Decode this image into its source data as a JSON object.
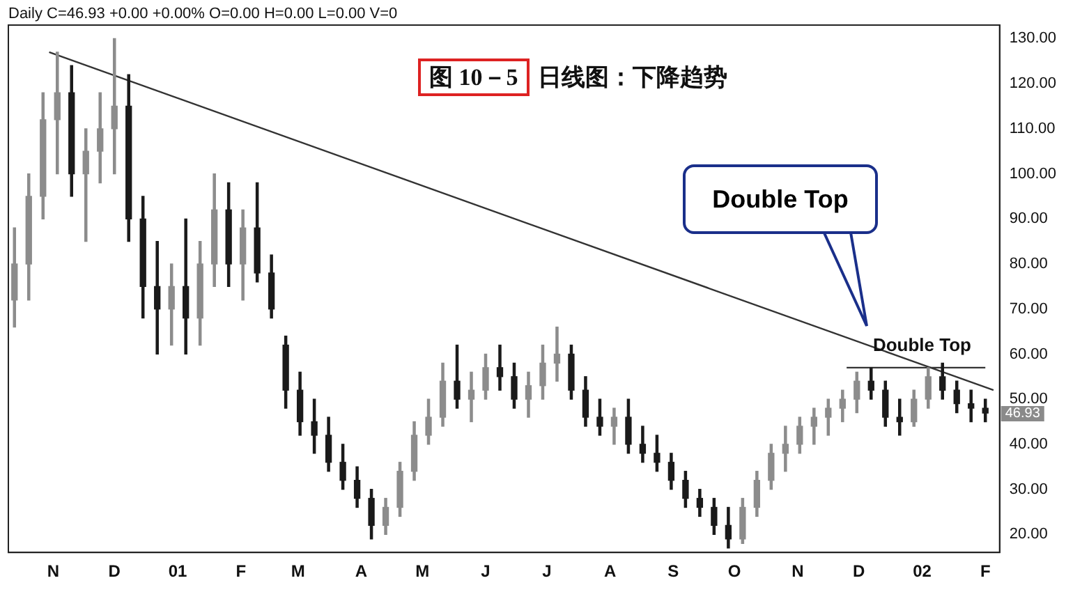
{
  "chart_data": {
    "type": "candlestick",
    "title": "图 10－5 日线图：下降趋势",
    "annotations": [
      "Daily C=46.93 +0.00 +0.00% O=0.00 H=0.00 L=0.00 V=0",
      "Double Top",
      {
        "text": "Double Top",
        "x": "2002-01-01",
        "y": 57
      },
      "46.93"
    ],
    "x": [
      "2000-10-13",
      "2000-10-20",
      "2000-10-27",
      "2000-11-03",
      "2000-11-10",
      "2000-11-17",
      "2000-11-24",
      "2000-12-01",
      "2000-12-08",
      "2000-12-15",
      "2000-12-22",
      "2000-12-29",
      "2001-01-05",
      "2001-01-12",
      "2001-01-19",
      "2001-01-26",
      "2001-02-02",
      "2001-02-09",
      "2001-02-16",
      "2001-02-23",
      "2001-03-02",
      "2001-03-09",
      "2001-03-16",
      "2001-03-23",
      "2001-03-30",
      "2001-04-06",
      "2001-04-13",
      "2001-04-20",
      "2001-04-27",
      "2001-05-04",
      "2001-05-11",
      "2001-05-18",
      "2001-05-25",
      "2001-06-01",
      "2001-06-08",
      "2001-06-15",
      "2001-06-22",
      "2001-06-29",
      "2001-07-06",
      "2001-07-13",
      "2001-07-20",
      "2001-07-27",
      "2001-08-03",
      "2001-08-10",
      "2001-08-17",
      "2001-08-24",
      "2001-08-31",
      "2001-09-07",
      "2001-09-14",
      "2001-09-21",
      "2001-09-28",
      "2001-10-05",
      "2001-10-12",
      "2001-10-19",
      "2001-10-26",
      "2001-11-02",
      "2001-11-09",
      "2001-11-16",
      "2001-11-23",
      "2001-11-30",
      "2001-12-07",
      "2001-12-14",
      "2001-12-21",
      "2001-12-28",
      "2002-01-04",
      "2002-01-11",
      "2002-01-18",
      "2002-01-25",
      "2002-02-01"
    ],
    "ohlc": [
      [
        72,
        88,
        66,
        80
      ],
      [
        80,
        100,
        72,
        95
      ],
      [
        95,
        118,
        90,
        112
      ],
      [
        112,
        127,
        100,
        118
      ],
      [
        118,
        124,
        95,
        100
      ],
      [
        100,
        110,
        85,
        105
      ],
      [
        105,
        118,
        98,
        110
      ],
      [
        110,
        130,
        100,
        115
      ],
      [
        115,
        122,
        85,
        90
      ],
      [
        90,
        95,
        68,
        75
      ],
      [
        75,
        85,
        60,
        70
      ],
      [
        70,
        80,
        62,
        75
      ],
      [
        75,
        90,
        60,
        68
      ],
      [
        68,
        85,
        62,
        80
      ],
      [
        80,
        100,
        75,
        92
      ],
      [
        92,
        98,
        75,
        80
      ],
      [
        80,
        92,
        72,
        88
      ],
      [
        88,
        98,
        76,
        78
      ],
      [
        78,
        82,
        68,
        70
      ],
      [
        62,
        64,
        48,
        52
      ],
      [
        52,
        56,
        42,
        45
      ],
      [
        45,
        50,
        38,
        42
      ],
      [
        42,
        46,
        34,
        36
      ],
      [
        36,
        40,
        30,
        32
      ],
      [
        32,
        35,
        26,
        28
      ],
      [
        28,
        30,
        19,
        22
      ],
      [
        22,
        28,
        20,
        26
      ],
      [
        26,
        36,
        24,
        34
      ],
      [
        34,
        45,
        32,
        42
      ],
      [
        42,
        50,
        40,
        46
      ],
      [
        46,
        58,
        44,
        54
      ],
      [
        54,
        62,
        48,
        50
      ],
      [
        50,
        56,
        45,
        52
      ],
      [
        52,
        60,
        50,
        57
      ],
      [
        57,
        62,
        52,
        55
      ],
      [
        55,
        58,
        48,
        50
      ],
      [
        50,
        56,
        46,
        53
      ],
      [
        53,
        62,
        50,
        58
      ],
      [
        58,
        66,
        54,
        60
      ],
      [
        60,
        62,
        50,
        52
      ],
      [
        52,
        55,
        44,
        46
      ],
      [
        46,
        50,
        42,
        44
      ],
      [
        44,
        48,
        40,
        46
      ],
      [
        46,
        50,
        38,
        40
      ],
      [
        40,
        44,
        36,
        38
      ],
      [
        38,
        42,
        34,
        36
      ],
      [
        36,
        38,
        30,
        32
      ],
      [
        32,
        34,
        26,
        28
      ],
      [
        28,
        30,
        24,
        26
      ],
      [
        26,
        28,
        20,
        22
      ],
      [
        22,
        26,
        17,
        19
      ],
      [
        19,
        28,
        18,
        26
      ],
      [
        26,
        34,
        24,
        32
      ],
      [
        32,
        40,
        30,
        38
      ],
      [
        38,
        44,
        34,
        40
      ],
      [
        40,
        46,
        38,
        44
      ],
      [
        44,
        48,
        40,
        46
      ],
      [
        46,
        50,
        42,
        48
      ],
      [
        48,
        52,
        45,
        50
      ],
      [
        50,
        56,
        47,
        54
      ],
      [
        54,
        57,
        50,
        52
      ],
      [
        52,
        54,
        44,
        46
      ],
      [
        46,
        50,
        42,
        45
      ],
      [
        45,
        52,
        44,
        50
      ],
      [
        50,
        57,
        48,
        55
      ],
      [
        55,
        58,
        50,
        52
      ],
      [
        52,
        54,
        47,
        49
      ],
      [
        49,
        52,
        45,
        48
      ],
      [
        48,
        50,
        45,
        46.93
      ]
    ],
    "colors": [
      "#8c8c8c",
      "#8c8c8c",
      "#8c8c8c",
      "#8c8c8c",
      "#1a1a1a",
      "#8c8c8c",
      "#8c8c8c",
      "#8c8c8c",
      "#1a1a1a",
      "#1a1a1a",
      "#1a1a1a",
      "#8c8c8c",
      "#1a1a1a",
      "#8c8c8c",
      "#8c8c8c",
      "#1a1a1a",
      "#8c8c8c",
      "#1a1a1a",
      "#1a1a1a",
      "#1a1a1a",
      "#1a1a1a",
      "#1a1a1a",
      "#1a1a1a",
      "#1a1a1a",
      "#1a1a1a",
      "#1a1a1a",
      "#8c8c8c",
      "#8c8c8c",
      "#8c8c8c",
      "#8c8c8c",
      "#8c8c8c",
      "#1a1a1a",
      "#8c8c8c",
      "#8c8c8c",
      "#1a1a1a",
      "#1a1a1a",
      "#8c8c8c",
      "#8c8c8c",
      "#8c8c8c",
      "#1a1a1a",
      "#1a1a1a",
      "#1a1a1a",
      "#8c8c8c",
      "#1a1a1a",
      "#1a1a1a",
      "#1a1a1a",
      "#1a1a1a",
      "#1a1a1a",
      "#1a1a1a",
      "#1a1a1a",
      "#1a1a1a",
      "#8c8c8c",
      "#8c8c8c",
      "#8c8c8c",
      "#8c8c8c",
      "#8c8c8c",
      "#8c8c8c",
      "#8c8c8c",
      "#8c8c8c",
      "#8c8c8c",
      "#1a1a1a",
      "#1a1a1a",
      "#1a1a1a",
      "#8c8c8c",
      "#8c8c8c",
      "#1a1a1a",
      "#1a1a1a",
      "#1a1a1a",
      "#1a1a1a"
    ],
    "series": [
      {
        "type": "line",
        "x": [
          "2000-10-30",
          "2002-02-05"
        ],
        "values": [
          127,
          52
        ],
        "color": "#333333"
      },
      {
        "type": "line",
        "x": [
          "2001-11-25",
          "2002-02-01"
        ],
        "values": [
          57,
          57
        ],
        "color": "#333333"
      }
    ],
    "xlim": [
      "2000-10-10",
      "2002-02-08"
    ],
    "xticks": [
      {
        "value": "2000-11-01",
        "label": "N"
      },
      {
        "value": "2000-12-01",
        "label": "D"
      },
      {
        "value": "2001-01-01",
        "label": "01"
      },
      {
        "value": "2001-02-01",
        "label": "F"
      },
      {
        "value": "2001-03-01",
        "label": "M"
      },
      {
        "value": "2001-04-01",
        "label": "A"
      },
      {
        "value": "2001-05-01",
        "label": "M"
      },
      {
        "value": "2001-06-01",
        "label": "J"
      },
      {
        "value": "2001-07-01",
        "label": "J"
      },
      {
        "value": "2001-08-01",
        "label": "A"
      },
      {
        "value": "2001-09-01",
        "label": "S"
      },
      {
        "value": "2001-10-01",
        "label": "O"
      },
      {
        "value": "2001-11-01",
        "label": "N"
      },
      {
        "value": "2001-12-01",
        "label": "D"
      },
      {
        "value": "2002-01-01",
        "label": "02"
      },
      {
        "value": "2002-02-01",
        "label": "F"
      }
    ],
    "ylim": [
      16,
      133
    ],
    "yticks": [
      {
        "value": 20,
        "label": "20.00"
      },
      {
        "value": 30,
        "label": "30.00"
      },
      {
        "value": 40,
        "label": "40.00"
      },
      {
        "value": 50,
        "label": "50.00"
      },
      {
        "value": 60,
        "label": "60.00"
      },
      {
        "value": 70,
        "label": "70.00"
      },
      {
        "value": 80,
        "label": "80.00"
      },
      {
        "value": 90,
        "label": "90.00"
      },
      {
        "value": 100,
        "label": "100.00"
      },
      {
        "value": 110,
        "label": "110.00"
      },
      {
        "value": 120,
        "label": "120.00"
      },
      {
        "value": 130,
        "label": "130.00"
      }
    ],
    "grid": false,
    "legend": false,
    "marker": "none",
    "line_style": "solid"
  }
}
